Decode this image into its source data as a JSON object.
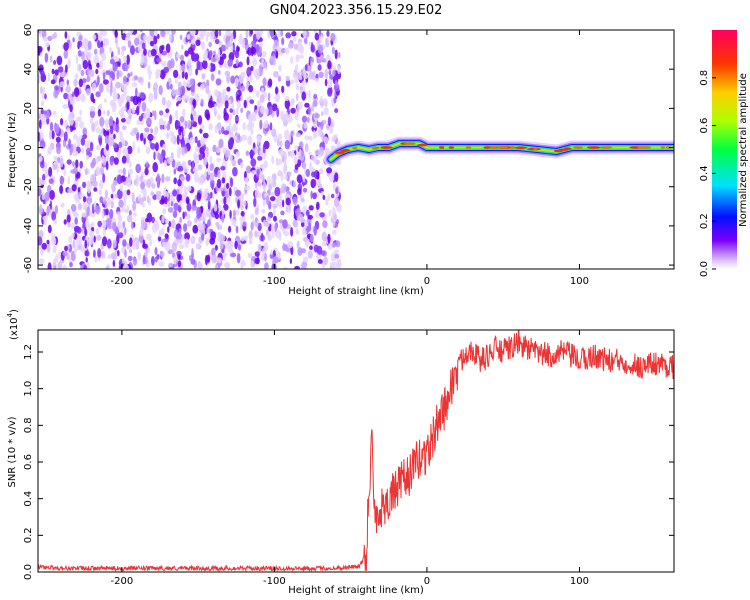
{
  "title": "GN04.2023.356.15.29.E02",
  "chart_data": [
    {
      "type": "heatmap",
      "xlabel": "Height of straight line (km)",
      "ylabel": "Frequency (Hz)",
      "xlim": [
        -255,
        162
      ],
      "ylim": [
        -62,
        60
      ],
      "x_ticks": [
        -200,
        -100,
        0,
        100
      ],
      "x_tick_labels": [
        "-200",
        "-100",
        "0",
        "100"
      ],
      "y_ticks": [
        60,
        40,
        20,
        0,
        -20,
        -40,
        -60
      ],
      "y_tick_labels": [
        "60",
        "40",
        "20",
        "0",
        "-20",
        "-40",
        "-60"
      ],
      "noise_region_x": [
        -255,
        -60
      ],
      "signal_ridge": {
        "x": [
          -63,
          -58,
          -52,
          -45,
          -38,
          -32,
          -25,
          -18,
          -12,
          -5,
          0,
          30,
          60,
          85,
          95,
          130,
          162
        ],
        "frequency_hz": [
          -6,
          -3,
          -1,
          0,
          -1,
          0,
          0,
          2,
          2,
          2,
          0,
          0,
          0,
          -2,
          0,
          0,
          0
        ]
      },
      "colorbar": {
        "label": "Normalized spectral amplitude",
        "range": [
          0,
          1
        ],
        "ticks": [
          0.0,
          0.2,
          0.4,
          0.6,
          0.8
        ],
        "tick_labels": [
          "0.0",
          "0.2",
          "0.4",
          "0.6",
          "0.8"
        ],
        "colors": [
          "#ffffff",
          "#d9b8ff",
          "#7a00ff",
          "#0010ff",
          "#00e0ff",
          "#00ff40",
          "#b0ff00",
          "#ffcc00",
          "#ff3300",
          "#ff0060"
        ]
      }
    },
    {
      "type": "line",
      "xlabel": "Height of straight line (km)",
      "ylabel": "SNR (10 * v/v)",
      "multiplier_label": "(x10",
      "multiplier_exp": "4",
      "xlim": [
        -255,
        162
      ],
      "ylim": [
        0,
        1.32
      ],
      "x_ticks": [
        -200,
        -100,
        0,
        100
      ],
      "x_tick_labels": [
        "-200",
        "-100",
        "0",
        "100"
      ],
      "y_ticks": [
        0.0,
        0.2,
        0.4,
        0.6,
        0.8,
        1.0,
        1.2
      ],
      "y_tick_labels": [
        "0.0",
        "0.2",
        "0.4",
        "0.6",
        "0.8",
        "1.0",
        "1.2"
      ],
      "series": [
        {
          "color": "#ee3333",
          "x": [
            -255,
            -240,
            -220,
            -200,
            -180,
            -160,
            -140,
            -120,
            -100,
            -80,
            -60,
            -45,
            -40,
            -38,
            -36,
            -35,
            -33,
            -30,
            -25,
            -20,
            -15,
            -10,
            -5,
            0,
            5,
            8,
            12,
            15,
            18,
            20,
            25,
            30,
            35,
            40,
            45,
            50,
            60,
            70,
            80,
            90,
            100,
            110,
            120,
            130,
            140,
            150,
            162
          ],
          "values": [
            0.03,
            0.02,
            0.02,
            0.02,
            0.02,
            0.02,
            0.02,
            0.02,
            0.02,
            0.02,
            0.02,
            0.03,
            0.08,
            0.45,
            0.75,
            0.4,
            0.3,
            0.35,
            0.4,
            0.45,
            0.5,
            0.55,
            0.62,
            0.65,
            0.75,
            0.85,
            0.9,
            1.0,
            1.05,
            1.1,
            1.2,
            1.22,
            1.15,
            1.18,
            1.22,
            1.2,
            1.25,
            1.2,
            1.18,
            1.2,
            1.15,
            1.18,
            1.15,
            1.15,
            1.12,
            1.14,
            1.12
          ]
        }
      ]
    }
  ]
}
